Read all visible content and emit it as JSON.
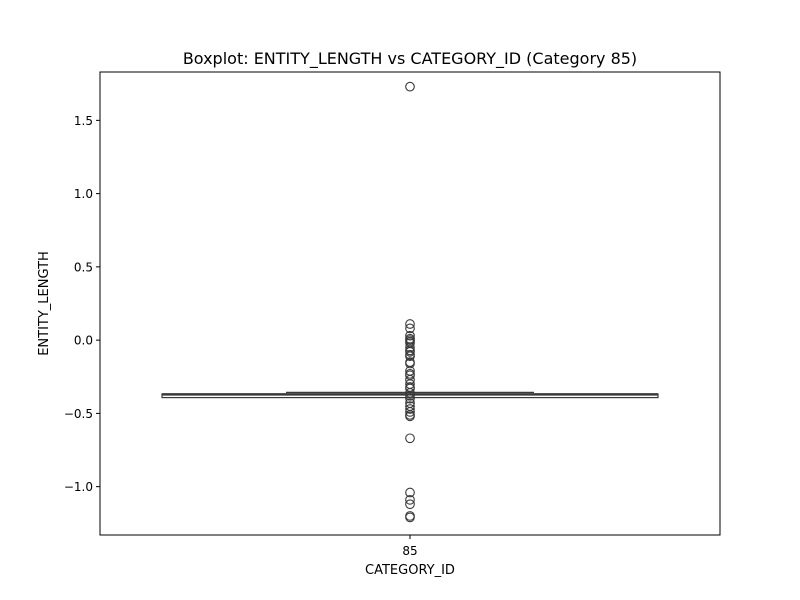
{
  "chart_data": {
    "type": "box",
    "title": "Boxplot: ENTITY_LENGTH vs CATEGORY_ID (Category 85)",
    "xlabel": "CATEGORY_ID",
    "ylabel": "ENTITY_LENGTH",
    "categories": [
      "85"
    ],
    "ylim": [
      -1.33,
      1.83
    ],
    "yticks": [
      -1.0,
      -0.5,
      0.0,
      0.5,
      1.0,
      1.5
    ],
    "ytick_labels": [
      "−1.0",
      "−0.5",
      "0.0",
      "0.5",
      "1.0",
      "1.5"
    ],
    "grid": false,
    "colors": {
      "box_edge": "#3a3a3a",
      "box_fill": "#ffffff",
      "outlier_edge": "#3a3a3a"
    },
    "boxes": [
      {
        "category": "85",
        "whisker_low": -0.37,
        "q1": -0.37,
        "median": -0.37,
        "q3": -0.37,
        "whisker_high": -0.37,
        "outliers": [
          1.73,
          0.11,
          0.08,
          0.03,
          0.01,
          0.0,
          -0.01,
          -0.02,
          -0.05,
          -0.07,
          -0.08,
          -0.1,
          -0.11,
          -0.15,
          -0.16,
          -0.21,
          -0.23,
          -0.24,
          -0.27,
          -0.3,
          -0.32,
          -0.33,
          -0.36,
          -0.38,
          -0.4,
          -0.43,
          -0.45,
          -0.47,
          -0.49,
          -0.51,
          -0.52,
          -0.67,
          -1.04,
          -1.09,
          -1.12,
          -1.2,
          -1.21
        ]
      }
    ]
  }
}
